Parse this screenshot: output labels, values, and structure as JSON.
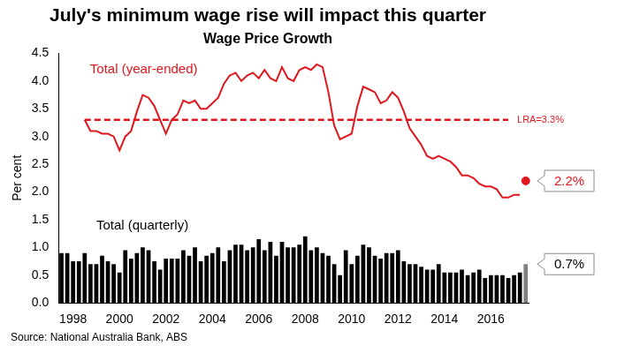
{
  "chart_data": {
    "type": "bar",
    "title": "July's minimum wage rise will impact this quarter",
    "subtitle": "Wage Price Growth",
    "y_label": "Per cent",
    "source": "Source: National Australia Bank, ABS",
    "categories": [
      null,
      null,
      "1998",
      null,
      null,
      null,
      null,
      null,
      null,
      null,
      "2000",
      null,
      null,
      null,
      null,
      null,
      null,
      null,
      "2002",
      null,
      null,
      null,
      null,
      null,
      null,
      null,
      "2004",
      null,
      null,
      null,
      null,
      null,
      null,
      null,
      "2006",
      null,
      null,
      null,
      null,
      null,
      null,
      null,
      "2008",
      null,
      null,
      null,
      null,
      null,
      null,
      null,
      "2010",
      null,
      null,
      null,
      null,
      null,
      null,
      null,
      "2012",
      null,
      null,
      null,
      null,
      null,
      null,
      null,
      "2014",
      null,
      null,
      null,
      null,
      null,
      null,
      null,
      "2016",
      null,
      null,
      null,
      null,
      null,
      null
    ],
    "ylim": [
      0,
      4.5
    ],
    "yticks": [
      {
        "value": 0,
        "label": "0.0"
      },
      0.5,
      {
        "value": 1,
        "label": "1.0"
      },
      1.5,
      {
        "value": 2,
        "label": "2.0"
      },
      2.5,
      {
        "value": 3,
        "label": "3.0"
      },
      3.5,
      {
        "value": 4,
        "label": "4.0"
      },
      4.5
    ],
    "grid": false,
    "series": [
      {
        "name": "Total (quarterly)",
        "type": "bar",
        "color": "#000000",
        "values": [
          0.9,
          0.9,
          0.75,
          0.75,
          0.9,
          0.7,
          0.7,
          0.85,
          0.75,
          0.7,
          0.55,
          0.95,
          0.8,
          0.9,
          1.0,
          0.95,
          0.75,
          0.6,
          0.8,
          0.8,
          0.8,
          0.95,
          0.85,
          1.0,
          0.75,
          0.85,
          0.9,
          1.0,
          0.75,
          0.95,
          1.05,
          1.05,
          0.95,
          1.0,
          1.15,
          0.95,
          1.1,
          0.85,
          1.1,
          1.0,
          1.0,
          1.05,
          1.2,
          0.95,
          1.0,
          0.9,
          0.85,
          0.7,
          0.5,
          0.95,
          0.7,
          0.85,
          1.05,
          1.0,
          0.85,
          0.8,
          0.9,
          0.9,
          0.95,
          0.75,
          0.7,
          0.7,
          0.65,
          0.6,
          0.6,
          0.7,
          0.55,
          0.55,
          0.55,
          0.6,
          0.5,
          0.55,
          0.6,
          0.45,
          0.5,
          0.5,
          0.5,
          0.45,
          0.5,
          0.55,
          0.7
        ],
        "colors": [
          "#000000",
          "#000000",
          "#000000",
          "#000000",
          "#000000",
          "#000000",
          "#000000",
          "#000000",
          "#000000",
          "#000000",
          "#000000",
          "#000000",
          "#000000",
          "#000000",
          "#000000",
          "#000000",
          "#000000",
          "#000000",
          "#000000",
          "#000000",
          "#000000",
          "#000000",
          "#000000",
          "#000000",
          "#000000",
          "#000000",
          "#000000",
          "#000000",
          "#000000",
          "#000000",
          "#000000",
          "#000000",
          "#000000",
          "#000000",
          "#000000",
          "#000000",
          "#000000",
          "#000000",
          "#000000",
          "#000000",
          "#000000",
          "#000000",
          "#000000",
          "#000000",
          "#000000",
          "#000000",
          "#000000",
          "#000000",
          "#000000",
          "#000000",
          "#000000",
          "#000000",
          "#000000",
          "#000000",
          "#000000",
          "#000000",
          "#000000",
          "#000000",
          "#000000",
          "#000000",
          "#000000",
          "#000000",
          "#000000",
          "#000000",
          "#000000",
          "#000000",
          "#000000",
          "#000000",
          "#000000",
          "#000000",
          "#000000",
          "#000000",
          "#000000",
          "#000000",
          "#000000",
          "#000000",
          "#000000",
          "#000000",
          "#000000",
          "#000000",
          "#808080"
        ],
        "value_labels": [
          null,
          null,
          null,
          null,
          null,
          null,
          null,
          null,
          null,
          null,
          null,
          null,
          null,
          null,
          null,
          null,
          null,
          null,
          null,
          null,
          null,
          null,
          null,
          null,
          null,
          null,
          null,
          null,
          null,
          null,
          null,
          null,
          null,
          null,
          null,
          null,
          null,
          null,
          null,
          null,
          null,
          null,
          null,
          null,
          null,
          null,
          null,
          null,
          null,
          null,
          null,
          null,
          null,
          null,
          null,
          null,
          null,
          null,
          null,
          null,
          null,
          null,
          null,
          null,
          null,
          null,
          null,
          null,
          null,
          null,
          null,
          null,
          null,
          null,
          null,
          null,
          null,
          null,
          null,
          null,
          "0.7%"
        ]
      },
      {
        "name": "Total (year-ended)",
        "type": "line",
        "color": "#e0161d",
        "line_style": "solid",
        "values": [
          null,
          null,
          null,
          null,
          3.3,
          3.1,
          3.1,
          3.05,
          3.05,
          3.0,
          2.75,
          3.0,
          3.1,
          3.45,
          3.75,
          3.7,
          3.55,
          3.3,
          3.05,
          3.3,
          3.4,
          3.65,
          3.6,
          3.65,
          3.5,
          3.5,
          3.6,
          3.7,
          3.95,
          4.1,
          4.15,
          4.0,
          4.1,
          4.15,
          4.05,
          4.2,
          4.05,
          4.0,
          4.25,
          4.05,
          4.0,
          4.2,
          4.25,
          4.2,
          4.3,
          4.25,
          3.8,
          3.2,
          2.95,
          3.0,
          3.05,
          3.55,
          3.9,
          3.85,
          3.8,
          3.6,
          3.65,
          3.8,
          3.7,
          3.45,
          3.15,
          3.0,
          2.85,
          2.65,
          2.6,
          2.65,
          2.6,
          2.55,
          2.45,
          2.3,
          2.3,
          2.25,
          2.15,
          2.1,
          2.1,
          2.05,
          1.9,
          1.9,
          1.95,
          1.95,
          null
        ]
      },
      {
        "name": "LRA=3.3%",
        "type": "line",
        "color": "#e0161d",
        "line_style": "dashed",
        "values": [
          null,
          null,
          null,
          null,
          3.3,
          3.3,
          3.3,
          3.3,
          3.3,
          3.3,
          3.3,
          3.3,
          3.3,
          3.3,
          3.3,
          3.3,
          3.3,
          3.3,
          3.3,
          3.3,
          3.3,
          3.3,
          3.3,
          3.3,
          3.3,
          3.3,
          3.3,
          3.3,
          3.3,
          3.3,
          3.3,
          3.3,
          3.3,
          3.3,
          3.3,
          3.3,
          3.3,
          3.3,
          3.3,
          3.3,
          3.3,
          3.3,
          3.3,
          3.3,
          3.3,
          3.3,
          3.3,
          3.3,
          3.3,
          3.3,
          3.3,
          3.3,
          3.3,
          3.3,
          3.3,
          3.3,
          3.3,
          3.3,
          3.3,
          3.3,
          3.3,
          3.3,
          3.3,
          3.3,
          3.3,
          3.3,
          3.3,
          3.3,
          3.3,
          3.3,
          3.3,
          3.3,
          3.3,
          3.3,
          3.3,
          3.3,
          3.3,
          3.3,
          null,
          null,
          null
        ]
      },
      {
        "type": "scatter",
        "color": "#e0161d",
        "marker": "circle",
        "values": [
          null,
          null,
          null,
          null,
          null,
          null,
          null,
          null,
          null,
          null,
          null,
          null,
          null,
          null,
          null,
          null,
          null,
          null,
          null,
          null,
          null,
          null,
          null,
          null,
          null,
          null,
          null,
          null,
          null,
          null,
          null,
          null,
          null,
          null,
          null,
          null,
          null,
          null,
          null,
          null,
          null,
          null,
          null,
          null,
          null,
          null,
          null,
          null,
          null,
          null,
          null,
          null,
          null,
          null,
          null,
          null,
          null,
          null,
          null,
          null,
          null,
          null,
          null,
          null,
          null,
          null,
          null,
          null,
          null,
          null,
          null,
          null,
          null,
          null,
          null,
          null,
          null,
          null,
          null,
          null,
          2.2
        ],
        "value_labels": [
          null,
          null,
          null,
          null,
          null,
          null,
          null,
          null,
          null,
          null,
          null,
          null,
          null,
          null,
          null,
          null,
          null,
          null,
          null,
          null,
          null,
          null,
          null,
          null,
          null,
          null,
          null,
          null,
          null,
          null,
          null,
          null,
          null,
          null,
          null,
          null,
          null,
          null,
          null,
          null,
          null,
          null,
          null,
          null,
          null,
          null,
          null,
          null,
          null,
          null,
          null,
          null,
          null,
          null,
          null,
          null,
          null,
          null,
          null,
          null,
          null,
          null,
          null,
          null,
          null,
          null,
          null,
          null,
          null,
          null,
          null,
          null,
          null,
          null,
          null,
          null,
          null,
          null,
          null,
          null,
          "2.2%"
        ]
      }
    ]
  }
}
